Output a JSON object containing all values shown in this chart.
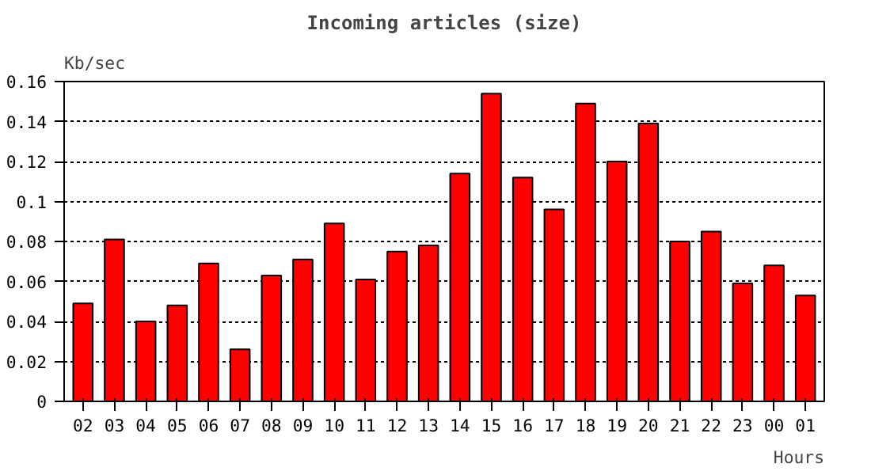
{
  "chart_data": {
    "type": "bar",
    "title": "Incoming articles (size)",
    "ylabel": "Kb/sec",
    "xlabel": "Hours",
    "categories": [
      "02",
      "03",
      "04",
      "05",
      "06",
      "07",
      "08",
      "09",
      "10",
      "11",
      "12",
      "13",
      "14",
      "15",
      "16",
      "17",
      "18",
      "19",
      "20",
      "21",
      "22",
      "23",
      "00",
      "01"
    ],
    "values": [
      0.049,
      0.081,
      0.04,
      0.048,
      0.069,
      0.026,
      0.063,
      0.071,
      0.089,
      0.061,
      0.075,
      0.078,
      0.114,
      0.154,
      0.112,
      0.096,
      0.149,
      0.12,
      0.139,
      0.08,
      0.085,
      0.059,
      0.068,
      0.053
    ],
    "color": "#ff0000",
    "ylim": [
      0,
      0.16
    ],
    "yticks": [
      0,
      0.02,
      0.04,
      0.06,
      0.08,
      {
        "value": 0.1,
        "label": "0.1"
      },
      0.12,
      0.14,
      0.16
    ],
    "grid": "y"
  }
}
